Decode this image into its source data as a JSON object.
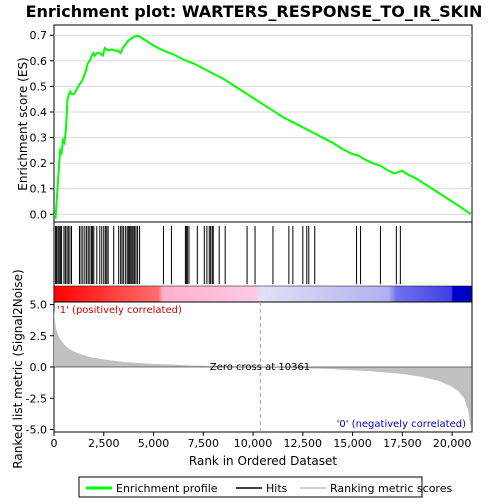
{
  "chart_data": {
    "type": "line",
    "title": "Enrichment plot: WARTERS_RESPONSE_TO_IR_SKIN",
    "colors": {
      "enrichment_line": "#00ff00",
      "hits": "#000000",
      "metric_fill": "#c0c0c0",
      "positive_label": "#cc0000",
      "negative_label": "#0000cc",
      "zero_cross_line": "#a0a0a0"
    },
    "top_panel": {
      "ylabel": "Enrichment score (ES)",
      "ylim": [
        -0.03,
        0.74
      ],
      "yticks": [
        0.0,
        0.1,
        0.2,
        0.3,
        0.4,
        0.5,
        0.6,
        0.7
      ],
      "ytick_labels": [
        "0.0",
        "0.1",
        "0.2",
        "0.3",
        "0.4",
        "0.5",
        "0.6",
        "0.7"
      ],
      "grid": true,
      "series": [
        {
          "name": "Enrichment profile",
          "x": [
            0,
            80,
            150,
            200,
            260,
            310,
            380,
            450,
            520,
            600,
            680,
            750,
            820,
            900,
            1000,
            1150,
            1300,
            1400,
            1500,
            1600,
            1700,
            1800,
            1900,
            1980,
            2050,
            2150,
            2300,
            2450,
            2550,
            2650,
            2750,
            2900,
            3050,
            3200,
            3350,
            3450,
            3550,
            3650,
            3750,
            3850,
            3950,
            4050,
            4150,
            4300,
            4500,
            4700,
            5000,
            5500,
            6000,
            6500,
            7000,
            7500,
            8000,
            8500,
            9000,
            9500,
            10000,
            10500,
            11000,
            11500,
            12000,
            12500,
            13000,
            13500,
            14000,
            14500,
            15000,
            15300,
            15600,
            16000,
            16400,
            16800,
            17100,
            17300,
            17500,
            17800,
            18200,
            18800,
            19400,
            20000,
            20500,
            20950
          ],
          "values": [
            0.0,
            -0.01,
            0.07,
            0.13,
            0.2,
            0.25,
            0.24,
            0.29,
            0.28,
            0.33,
            0.45,
            0.47,
            0.48,
            0.47,
            0.47,
            0.49,
            0.51,
            0.52,
            0.54,
            0.56,
            0.59,
            0.6,
            0.62,
            0.63,
            0.62,
            0.63,
            0.63,
            0.62,
            0.65,
            0.645,
            0.64,
            0.645,
            0.64,
            0.64,
            0.63,
            0.65,
            0.66,
            0.67,
            0.68,
            0.685,
            0.69,
            0.695,
            0.697,
            0.695,
            0.685,
            0.675,
            0.66,
            0.64,
            0.625,
            0.605,
            0.59,
            0.57,
            0.55,
            0.53,
            0.505,
            0.48,
            0.455,
            0.43,
            0.405,
            0.38,
            0.36,
            0.34,
            0.32,
            0.3,
            0.28,
            0.255,
            0.235,
            0.23,
            0.215,
            0.2,
            0.19,
            0.17,
            0.16,
            0.165,
            0.17,
            0.155,
            0.14,
            0.11,
            0.08,
            0.05,
            0.025,
            0.0
          ]
        }
      ]
    },
    "hits_panel": {
      "hit_positions": [
        80,
        130,
        200,
        260,
        320,
        380,
        500,
        570,
        650,
        720,
        800,
        880,
        1280,
        1360,
        1450,
        1550,
        1640,
        1720,
        1800,
        1880,
        1940,
        2000,
        2150,
        2300,
        2400,
        2500,
        2580,
        2650,
        2720,
        3000,
        3250,
        3350,
        3420,
        3500,
        3600,
        3680,
        3750,
        3800,
        3860,
        3920,
        3980,
        4050,
        4120,
        4200,
        4300,
        5500,
        5900,
        6600,
        6650,
        6700,
        6780,
        7200,
        7550,
        7680,
        7800,
        7870,
        7950,
        8000,
        8300,
        8600,
        9700,
        10100,
        11000,
        11800,
        12000,
        12500,
        12700,
        12800,
        13100,
        15200,
        15400,
        16400,
        17200,
        17400
      ]
    },
    "ranking_panel": {
      "xlabel": "Rank in Ordered Dataset",
      "ylabel": "Ranked list metric (Signal2Noise)",
      "xlim": [
        0,
        21000
      ],
      "xticks": [
        0,
        2500,
        5000,
        7500,
        10000,
        12500,
        15000,
        17500,
        20000
      ],
      "xtick_labels": [
        "0",
        "2,500",
        "5,000",
        "7,500",
        "10,000",
        "12,500",
        "15,000",
        "17,500",
        "20,000"
      ],
      "ylim": [
        -5.2,
        5.2
      ],
      "yticks": [
        5.0,
        2.5,
        0.0,
        -2.5,
        -5.0
      ],
      "ytick_labels": [
        "5.0",
        "2.5",
        "0.0",
        "-2.5",
        "-5.0"
      ],
      "metric_curve": {
        "x": [
          0,
          50,
          100,
          200,
          300,
          500,
          800,
          1200,
          1800,
          2500,
          3500,
          5000,
          7000,
          9000,
          10361,
          12000,
          14000,
          16000,
          17500,
          18500,
          19300,
          19900,
          20300,
          20600,
          20800,
          20950
        ],
        "values": [
          4.6,
          3.7,
          3.1,
          2.6,
          2.25,
          1.8,
          1.4,
          1.1,
          0.8,
          0.6,
          0.4,
          0.25,
          0.12,
          0.04,
          0.0,
          -0.06,
          -0.17,
          -0.35,
          -0.55,
          -0.8,
          -1.1,
          -1.5,
          -1.9,
          -2.5,
          -3.4,
          -5.0
        ]
      },
      "zero_cross_label": "Zero cross at 10361",
      "positive_label": "'1' (positively correlated)",
      "negative_label": "'0' (negatively correlated)"
    },
    "legend": {
      "items": [
        "Enrichment profile",
        "Hits",
        "Ranking metric scores"
      ],
      "placement": "bottom"
    }
  }
}
